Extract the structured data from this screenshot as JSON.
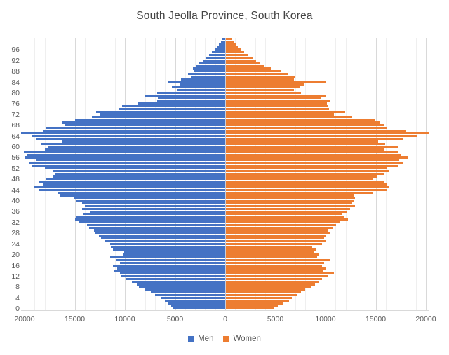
{
  "chart_data": {
    "type": "bar",
    "variant": "population-pyramid",
    "title": "South Jeolla Province, South Korea",
    "legend": {
      "position": "bottom",
      "entries": [
        {
          "label": "Men",
          "color": "#4472C4"
        },
        {
          "label": "Women",
          "color": "#ED7D31"
        }
      ]
    },
    "x_axis": {
      "min": -20000,
      "max": 20000,
      "major_tick_interval": 5000,
      "minor_gridline_interval": 1000,
      "gridlines": true,
      "tick_values": [
        -20000,
        -15000,
        -10000,
        -5000,
        0,
        5000,
        10000,
        15000,
        20000
      ],
      "tick_labels": [
        "20000",
        "15000",
        "10000",
        "5000",
        "0",
        "5000",
        "10000",
        "15000",
        "20000"
      ]
    },
    "y_axis": {
      "unit": "age in single years, index equals age",
      "min": 0,
      "max": 100,
      "tick_interval": 4,
      "ticks": [
        0,
        4,
        8,
        12,
        16,
        20,
        24,
        28,
        32,
        36,
        40,
        44,
        48,
        52,
        56,
        60,
        64,
        68,
        72,
        76,
        80,
        84,
        88,
        92,
        96
      ]
    },
    "series": [
      {
        "name": "Men",
        "side": "left",
        "color": "#4472C4",
        "values": [
          5200,
          5400,
          5700,
          6000,
          6400,
          7000,
          7400,
          8000,
          8600,
          8800,
          9300,
          9900,
          10400,
          10500,
          11100,
          10800,
          11200,
          10500,
          10900,
          11500,
          10200,
          10100,
          11200,
          11400,
          11500,
          12000,
          12400,
          12600,
          13000,
          13100,
          13600,
          13800,
          14600,
          15000,
          14800,
          14100,
          13500,
          14300,
          14000,
          14300,
          14800,
          15100,
          16500,
          16700,
          18600,
          19100,
          18100,
          18500,
          17900,
          17100,
          16900,
          17100,
          18000,
          19200,
          19500,
          18900,
          19900,
          19800,
          20100,
          18000,
          17700,
          18300,
          16300,
          18800,
          19300,
          20400,
          18200,
          17900,
          16000,
          16200,
          15000,
          13300,
          12500,
          12900,
          10600,
          10300,
          8700,
          6800,
          6700,
          8000,
          6800,
          4800,
          5300,
          4500,
          5700,
          4400,
          3400,
          3700,
          3100,
          3200,
          2900,
          2600,
          2150,
          1900,
          1600,
          1300,
          1050,
          830,
          640,
          450,
          250
        ]
      },
      {
        "name": "Women",
        "side": "right",
        "color": "#ED7D31",
        "values": [
          4800,
          5200,
          5700,
          6300,
          6600,
          7100,
          7500,
          7900,
          8500,
          8900,
          9200,
          9600,
          10200,
          10800,
          9700,
          9950,
          9600,
          9800,
          10400,
          9100,
          9200,
          8800,
          9000,
          8600,
          9600,
          9950,
          9800,
          10000,
          10400,
          10200,
          10600,
          11000,
          11300,
          12200,
          11800,
          11600,
          12000,
          12400,
          12900,
          12600,
          12800,
          12900,
          12800,
          14600,
          16000,
          16300,
          16000,
          15800,
          14600,
          15100,
          15700,
          16300,
          16000,
          17100,
          17700,
          17300,
          18200,
          17500,
          17100,
          15800,
          17100,
          15900,
          15200,
          17700,
          19100,
          20400,
          17900,
          16000,
          15800,
          15400,
          14900,
          12600,
          10800,
          11900,
          10300,
          10200,
          10050,
          10400,
          9450,
          9900,
          7500,
          6800,
          7400,
          7800,
          9900,
          6800,
          6900,
          6200,
          5450,
          4500,
          3750,
          3350,
          3000,
          2650,
          2200,
          1850,
          1500,
          1200,
          980,
          740,
          550
        ]
      }
    ],
    "colors": {
      "title_text": "#444444",
      "axis_text": "#595959",
      "minor_gridline": "#EFEFEF",
      "major_gridline": "#D9D9D9",
      "center_axis": "#C9CFDB",
      "background": "#FFFFFF"
    }
  }
}
